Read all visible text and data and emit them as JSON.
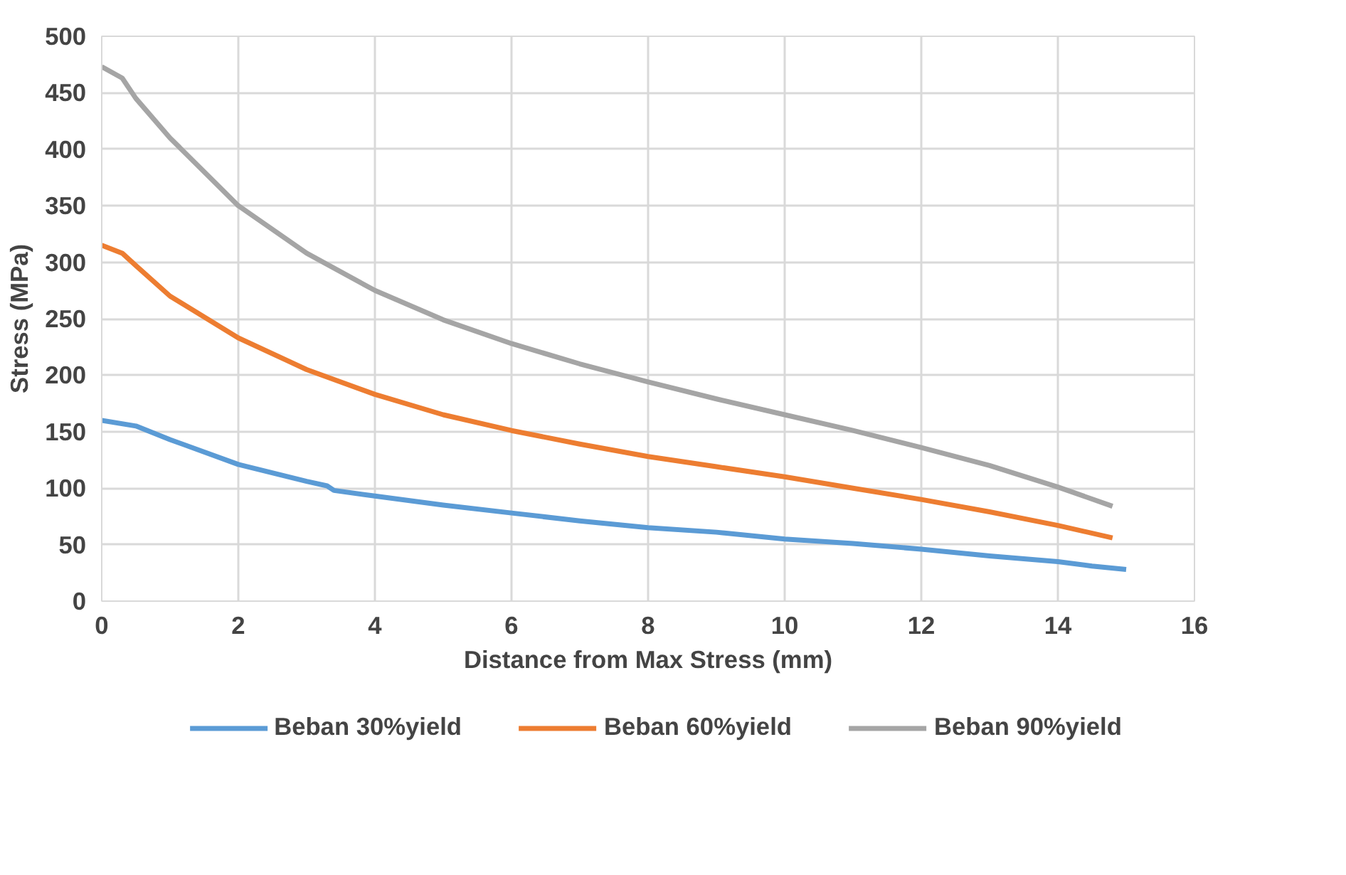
{
  "chart_data": {
    "type": "line",
    "xlabel": "Distance from Max Stress (mm)",
    "ylabel": "Stress (MPa)",
    "xlim": [
      0,
      16
    ],
    "xticks": [
      0,
      2,
      4,
      6,
      8,
      10,
      12,
      14,
      16
    ],
    "ylim": [
      0,
      500
    ],
    "yticks": [
      0,
      50,
      100,
      150,
      200,
      250,
      300,
      350,
      400,
      450,
      500
    ],
    "grid": true,
    "legend": "bottom",
    "marker": "none",
    "line_style": "solid",
    "series": [
      {
        "name": "Beban 30%yield",
        "color": "#5b9bd5",
        "x": [
          0,
          0.5,
          1,
          2,
          3,
          3.3,
          3.4,
          4,
          5,
          6,
          7,
          8,
          9,
          10,
          11,
          12,
          13,
          14,
          14.5,
          15
        ],
        "values": [
          160,
          155,
          143,
          121,
          106,
          102,
          98,
          93,
          85,
          78,
          71,
          65,
          61,
          55,
          51,
          46,
          40,
          35,
          31,
          28
        ]
      },
      {
        "name": "Beban 60%yield",
        "color": "#ed7d31",
        "x": [
          0,
          0.3,
          0.5,
          1,
          2,
          3,
          4,
          5,
          6,
          7,
          8,
          9,
          10,
          11,
          12,
          13,
          14,
          14.8
        ],
        "values": [
          315,
          308,
          297,
          270,
          233,
          205,
          183,
          165,
          151,
          139,
          128,
          119,
          110,
          100,
          90,
          79,
          67,
          56
        ]
      },
      {
        "name": "Beban 90%yield",
        "color": "#a5a5a5",
        "x": [
          0,
          0.3,
          0.5,
          1,
          2,
          3,
          4,
          5,
          6,
          7,
          8,
          9,
          10,
          11,
          12,
          13,
          14,
          14.8
        ],
        "values": [
          473,
          463,
          445,
          410,
          350,
          308,
          275,
          249,
          228,
          210,
          194,
          179,
          165,
          151,
          136,
          120,
          101,
          84
        ]
      }
    ]
  }
}
